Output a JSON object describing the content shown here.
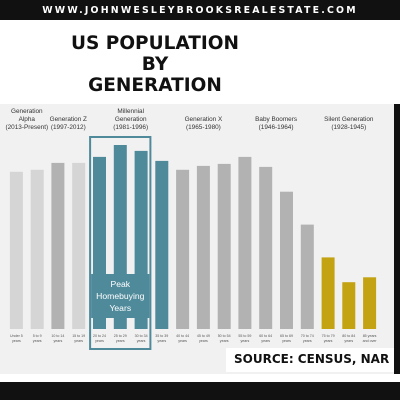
{
  "header": {
    "website": "WWW.JOHNWESLEYBROOKSREALESTATE.COM"
  },
  "title_lines": [
    "US POPULATION BY",
    "GENERATION"
  ],
  "source": "SOURCE: CENSUS, NAR",
  "colors": {
    "bar_default": "#d5d5d5",
    "bar_alternate": "#b2b2b2",
    "bar_millennial": "#4f8a9b",
    "bar_silent": "#c4a312",
    "highlight_border": "#4f8a9b",
    "panel": "#f1f1f1",
    "frame": "#111111"
  },
  "chart_data": {
    "type": "bar",
    "title": "US POPULATION BY GENERATION",
    "xlabel": "",
    "ylabel": "",
    "categories": [
      [
        "Under 5",
        "years"
      ],
      [
        "5 to 9",
        "years"
      ],
      [
        "10 to 14",
        "years"
      ],
      [
        "15 to 19",
        "years"
      ],
      [
        "20 to 24",
        "years"
      ],
      [
        "25 to 29",
        "years"
      ],
      [
        "30 to 34",
        "years"
      ],
      [
        "35 to 39",
        "years"
      ],
      [
        "40 to 44",
        "years"
      ],
      [
        "45 to 49",
        "years"
      ],
      [
        "50 to 54",
        "years"
      ],
      [
        "55 to 59",
        "years"
      ],
      [
        "60 to 64",
        "years"
      ],
      [
        "65 to 69",
        "years"
      ],
      [
        "70 to 74",
        "years"
      ],
      [
        "75 to 79",
        "years"
      ],
      [
        "80 to 84",
        "years"
      ],
      [
        "85 years",
        "and over"
      ]
    ],
    "values": [
      158,
      160,
      167,
      167,
      173,
      185,
      179,
      169,
      160,
      164,
      166,
      173,
      163,
      138,
      105,
      72,
      47,
      52
    ],
    "ylim": [
      0,
      190
    ],
    "grid": false,
    "generations": [
      {
        "name": [
          "Generation",
          "Alpha",
          "(2013-Present)"
        ],
        "start": 0,
        "end": 1,
        "color": "bar_default"
      },
      {
        "name": [
          "Generation Z",
          "(1997-2012)"
        ],
        "start": 2,
        "end": 3,
        "color": "bar_alternate"
      },
      {
        "name": [
          "Millennial",
          "Generation",
          "(1981-1996)"
        ],
        "start": 4,
        "end": 7,
        "color": "bar_millennial"
      },
      {
        "name": [
          "Generation X",
          "(1965-1980)"
        ],
        "start": 8,
        "end": 10,
        "color": "bar_alternate"
      },
      {
        "name": [
          "Baby Boomers",
          "(1946-1964)"
        ],
        "start": 11,
        "end": 14,
        "color": "bar_default"
      },
      {
        "name": [
          "Silent Generation",
          "(1928-1945)"
        ],
        "start": 15,
        "end": 17,
        "color": "bar_silent"
      }
    ],
    "annotation": {
      "text": [
        "Peak",
        "Homebuying",
        "Years"
      ],
      "start": 4,
      "end": 6
    }
  }
}
